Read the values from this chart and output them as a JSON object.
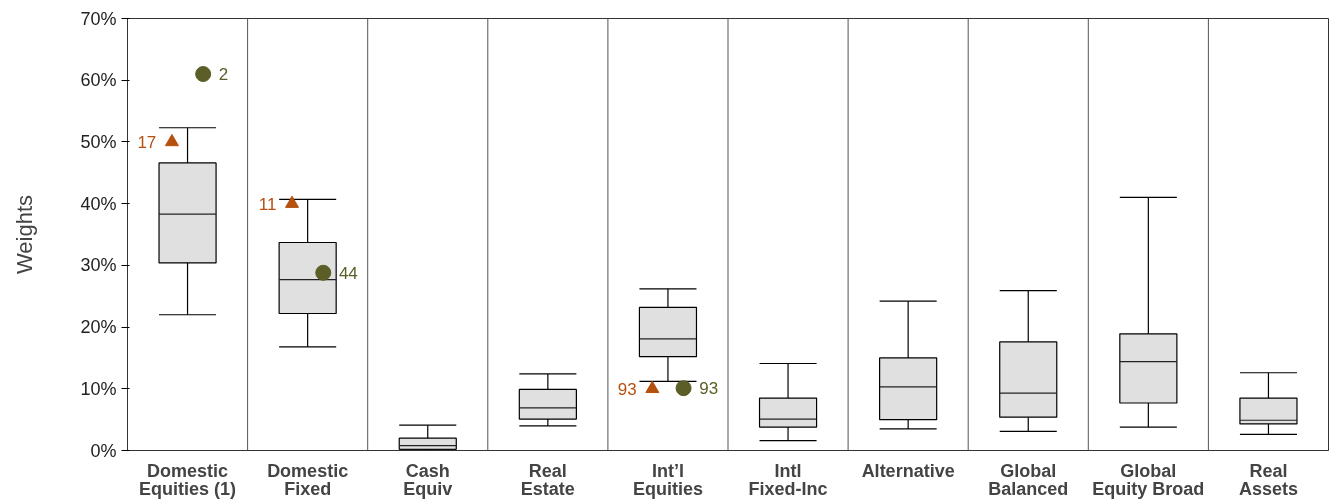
{
  "chart_data": {
    "type": "box",
    "ylabel": "Weights",
    "categories": [
      "Domestic\nEquities (1)",
      "Domestic\nFixed",
      "Cash\nEquiv",
      "Real\nEstate",
      "Int’l\nEquities",
      "Intl\nFixed-Inc",
      "Alternative",
      "Global\nBalanced",
      "Global\nEquity Broad",
      "Real\nAssets"
    ],
    "ylim": [
      0,
      70
    ],
    "yticks": [
      {
        "value": 0,
        "label": "0%"
      },
      {
        "value": 10,
        "label": "10%"
      },
      {
        "value": 20,
        "label": "20%"
      },
      {
        "value": 30,
        "label": "30%"
      },
      {
        "value": 40,
        "label": "40%"
      },
      {
        "value": 50,
        "label": "50%"
      },
      {
        "value": 60,
        "label": "60%"
      },
      {
        "value": 70,
        "label": "70%"
      }
    ],
    "grid": "x",
    "series": [
      {
        "color": "#e0e0e0",
        "boxes": [
          {
            "low": 22.0,
            "q1": 30.4,
            "median": 38.3,
            "q3": 46.6,
            "high": 52.3
          },
          {
            "low": 16.8,
            "q1": 22.2,
            "median": 27.7,
            "q3": 33.7,
            "high": 40.7
          },
          {
            "low": 0.1,
            "q1": 0.2,
            "median": 0.8,
            "q3": 2.0,
            "high": 4.1
          },
          {
            "low": 4.0,
            "q1": 5.1,
            "median": 6.9,
            "q3": 9.9,
            "high": 12.4
          },
          {
            "low": 11.2,
            "q1": 15.2,
            "median": 18.1,
            "q3": 23.2,
            "high": 26.2
          },
          {
            "low": 1.6,
            "q1": 3.8,
            "median": 5.1,
            "q3": 8.5,
            "high": 14.1
          },
          {
            "low": 3.5,
            "q1": 5.0,
            "median": 10.3,
            "q3": 15.0,
            "high": 24.2
          },
          {
            "low": 3.1,
            "q1": 5.4,
            "median": 9.3,
            "q3": 17.6,
            "high": 25.9
          },
          {
            "low": 3.8,
            "q1": 7.7,
            "median": 14.4,
            "q3": 18.9,
            "high": 41.0
          },
          {
            "low": 2.6,
            "q1": 4.3,
            "median": 4.9,
            "q3": 8.5,
            "high": 12.6
          }
        ]
      },
      {
        "type": "scatter",
        "marker": "triangle",
        "color": "#b5500f",
        "x": [
          "Domestic\nEquities (1)",
          "Domestic\nFixed",
          "Int’l\nEquities"
        ],
        "values": [
          50,
          40,
          10
        ]
      },
      {
        "type": "scatter",
        "marker": "circle",
        "color": "#5b5e26",
        "x": [
          "Domestic\nEquities (1)",
          "Domestic\nFixed",
          "Int’l\nEquities"
        ],
        "values": [
          61,
          28.8,
          10.1
        ]
      }
    ],
    "annotations": [
      "17",
      "11",
      "93",
      "2",
      "44",
      "93"
    ]
  }
}
